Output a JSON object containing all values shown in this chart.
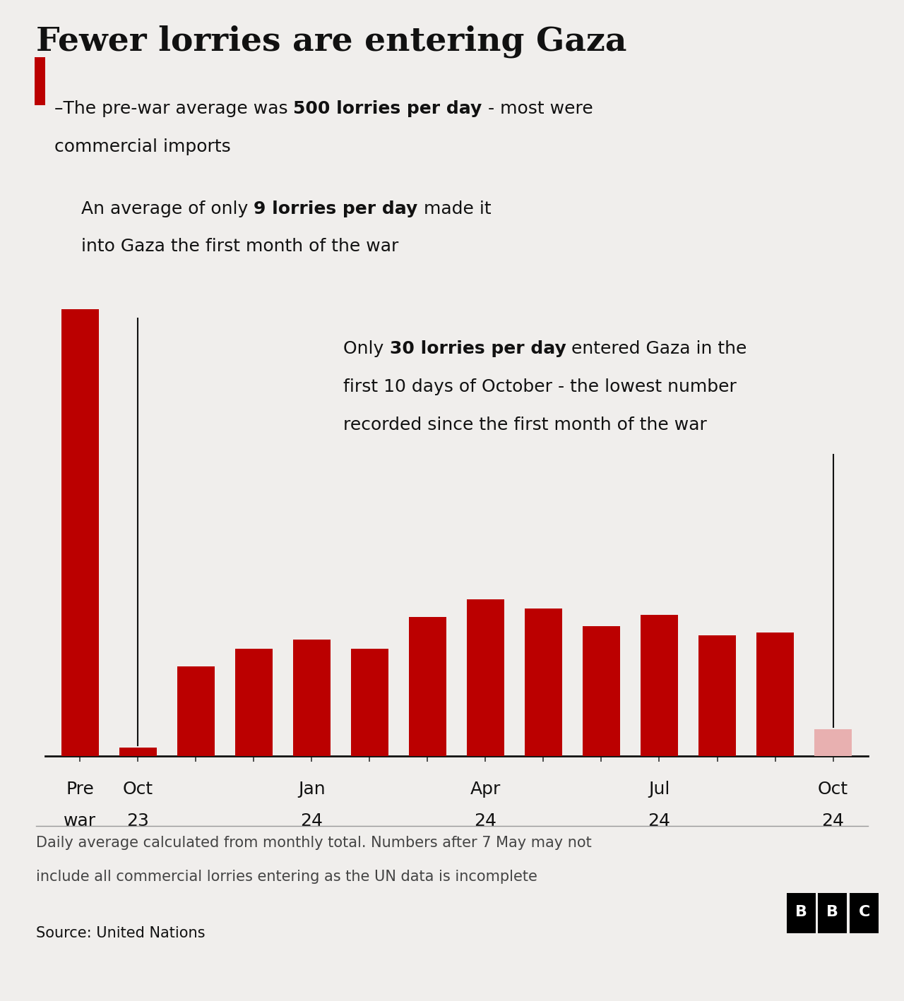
{
  "title": "Fewer lorries are entering Gaza",
  "bg_color": "#f0eeec",
  "bar_color": "#bb0000",
  "bar_color_partial": "#e8b0b0",
  "values": [
    500,
    9,
    100,
    120,
    130,
    120,
    155,
    175,
    165,
    145,
    158,
    135,
    138,
    30
  ],
  "partial_index": 13,
  "tick_positions": [
    0,
    1,
    4,
    7,
    10,
    13
  ],
  "tick_labels_line1": [
    "Pre",
    "Oct",
    "Jan",
    "Apr",
    "Jul",
    "Oct"
  ],
  "tick_labels_line2": [
    "war",
    "23",
    "24",
    "24",
    "24",
    "24"
  ],
  "ann1_plain1": "–The pre-war average was ",
  "ann1_bold": "500 lorries per day",
  "ann1_plain2": " - most were",
  "ann1_line2": "commercial imports",
  "ann2_plain1": "An average of only ",
  "ann2_bold": "9 lorries per day",
  "ann2_plain2": " made it",
  "ann2_line2": "into Gaza the first month of the war",
  "ann3_plain1": "Only ",
  "ann3_bold": "30 lorries per day",
  "ann3_plain2": " entered Gaza in the",
  "ann3_line2": "first 10 days of October - the lowest number",
  "ann3_line3": "recorded since the first month of the war",
  "footnote_line1": "Daily average calculated from monthly total. Numbers after 7 May may not",
  "footnote_line2": "include all commercial lorries entering as the UN data is incomplete",
  "source": "Source: United Nations",
  "ylim": [
    0,
    560
  ],
  "ann_fontsize": 18,
  "title_fontsize": 34,
  "tick_fontsize": 18,
  "footnote_fontsize": 15,
  "source_fontsize": 15
}
